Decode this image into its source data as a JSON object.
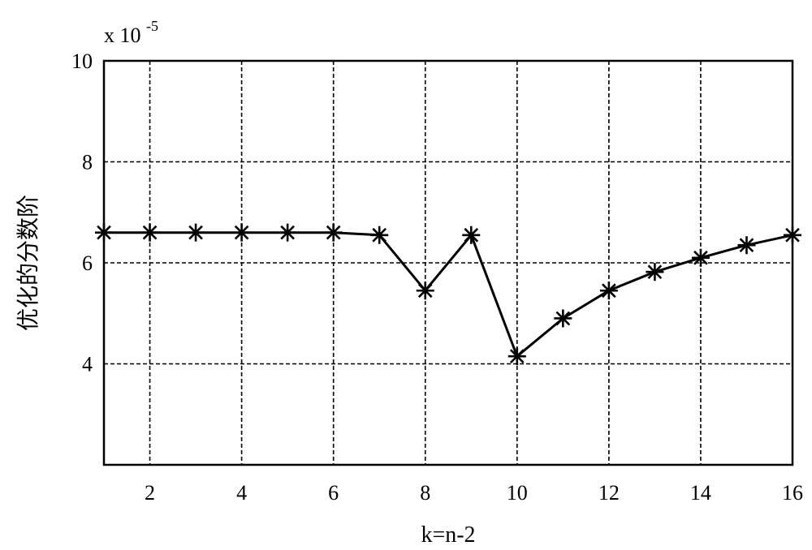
{
  "chart_data": {
    "type": "line",
    "title": "",
    "xlabel": "k=n-2",
    "ylabel": "优化的分数阶",
    "scale_prefix": "x 10",
    "scale_exponent": "-5",
    "xlim": [
      1,
      16
    ],
    "ylim": [
      2,
      10
    ],
    "xticks": [
      2,
      4,
      6,
      8,
      10,
      12,
      14,
      16
    ],
    "yticks": [
      4,
      6,
      8,
      10
    ],
    "grid": true,
    "marker": "asterisk",
    "series": [
      {
        "x": [
          1,
          2,
          3,
          4,
          5,
          6,
          7,
          8,
          9,
          10,
          11,
          12,
          13,
          14,
          15,
          16
        ],
        "values": [
          6.6,
          6.6,
          6.6,
          6.6,
          6.6,
          6.6,
          6.55,
          5.45,
          6.55,
          4.15,
          4.9,
          5.45,
          5.82,
          6.1,
          6.35,
          6.55
        ]
      }
    ]
  }
}
